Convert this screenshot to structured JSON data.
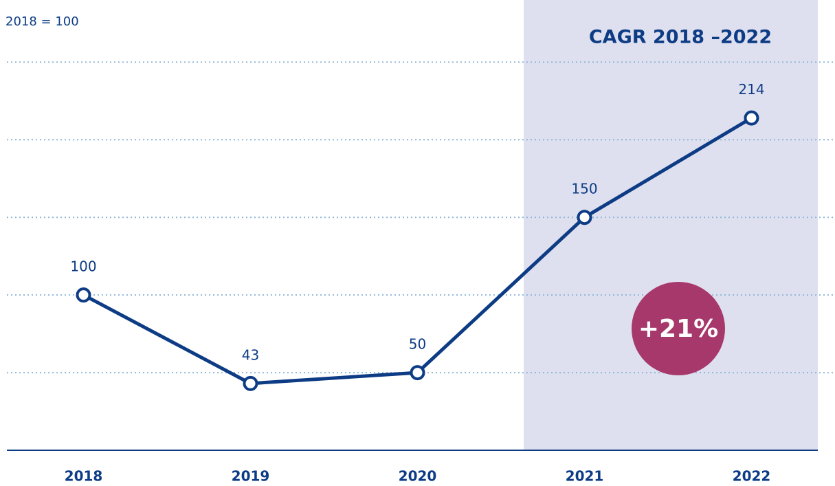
{
  "chart_data": {
    "type": "line",
    "subtitle": "2018 = 100",
    "annotations": [
      "CAGR 2018 –2022",
      "+21%"
    ],
    "categories": [
      "2018",
      "2019",
      "2020",
      "2021",
      "2022"
    ],
    "values": [
      100,
      43,
      50,
      150,
      214
    ],
    "color": "#0d3c85",
    "ylim": [
      0,
      290
    ],
    "yticks": [
      50,
      100,
      150,
      200,
      250
    ],
    "grid": true
  }
}
